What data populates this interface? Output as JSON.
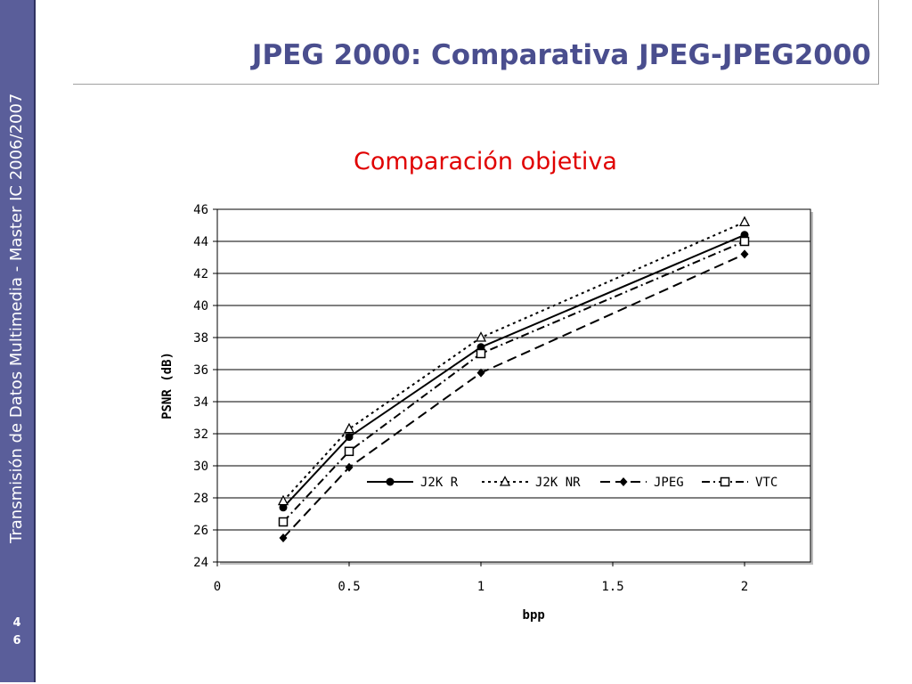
{
  "sidebar": {
    "text": "Transmisión de Datos Multimedia - Master IC 2006/2007",
    "page_number_line1": "4",
    "page_number_line2": "6"
  },
  "header": {
    "title": "JPEG 2000: Comparativa JPEG-JPEG2000"
  },
  "subtitle": "Comparación objetiva",
  "colors": {
    "sidebar": "#5a5e9a",
    "title": "#4a4e8e",
    "subtitle": "#e00000"
  },
  "chart_data": {
    "type": "line",
    "xlabel": "bpp",
    "ylabel": "PSNR (dB)",
    "xlim": [
      0,
      2.25
    ],
    "ylim": [
      24,
      46
    ],
    "xticks": [
      0,
      0.5,
      1,
      1.5,
      2
    ],
    "xtick_labels": [
      "0",
      "0.5",
      "1",
      "1.5",
      "2"
    ],
    "yticks": [
      24,
      26,
      28,
      30,
      32,
      34,
      36,
      38,
      40,
      42,
      44,
      46
    ],
    "ytick_labels": [
      "24",
      "26",
      "28",
      "30",
      "32",
      "34",
      "36",
      "38",
      "40",
      "42",
      "44",
      "46"
    ],
    "grid": "horizontal",
    "legend_position": "center-right",
    "series": [
      {
        "name": "J2K R",
        "x": [
          0.25,
          0.5,
          1,
          2
        ],
        "y": [
          27.4,
          31.8,
          37.4,
          44.4
        ],
        "marker": "circle",
        "dash": "solid"
      },
      {
        "name": "J2K NR",
        "x": [
          0.25,
          0.5,
          1,
          2
        ],
        "y": [
          27.8,
          32.3,
          38,
          45.2
        ],
        "marker": "triangle",
        "dash": "dotted"
      },
      {
        "name": "JPEG",
        "x": [
          0.25,
          0.5,
          1,
          2
        ],
        "y": [
          25.5,
          29.9,
          35.8,
          43.2
        ],
        "marker": "diamond",
        "dash": "dashed"
      },
      {
        "name": "VTC",
        "x": [
          0.25,
          0.5,
          1,
          2
        ],
        "y": [
          26.5,
          30.9,
          37,
          44
        ],
        "marker": "square",
        "dash": "dashdot"
      }
    ]
  }
}
